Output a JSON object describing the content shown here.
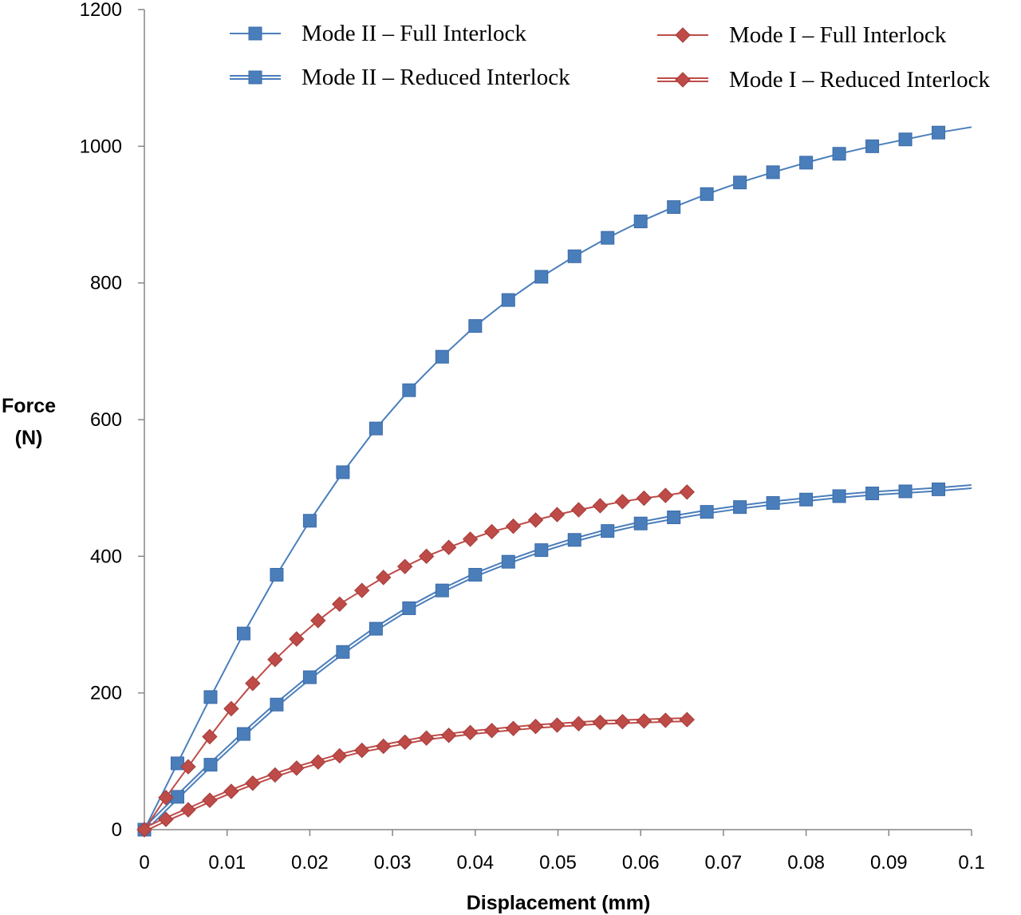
{
  "chart_data": {
    "type": "line",
    "title": "",
    "xlabel": "Displacement (mm)",
    "ylabel_lines": [
      "Force",
      "(N)"
    ],
    "xlim": [
      0,
      0.1
    ],
    "ylim": [
      0,
      1200
    ],
    "x_ticks": [
      {
        "value": 0,
        "label": "0"
      },
      {
        "value": 0.01,
        "label": "0.01"
      },
      {
        "value": 0.02,
        "label": "0.02"
      },
      {
        "value": 0.03,
        "label": "0.03"
      },
      {
        "value": 0.04,
        "label": "0.04"
      },
      {
        "value": 0.05,
        "label": "0.05"
      },
      {
        "value": 0.06,
        "label": "0.06"
      },
      {
        "value": 0.07,
        "label": "0.07"
      },
      {
        "value": 0.08,
        "label": "0.08"
      },
      {
        "value": 0.09,
        "label": "0.09"
      },
      {
        "value": 0.1,
        "label": "0.1"
      }
    ],
    "y_ticks": [
      {
        "value": 0,
        "label": "0"
      },
      {
        "value": 200,
        "label": "200"
      },
      {
        "value": 400,
        "label": "400"
      },
      {
        "value": 600,
        "label": "600"
      },
      {
        "value": 800,
        "label": "800"
      },
      {
        "value": 1000,
        "label": "1000"
      },
      {
        "value": 1200,
        "label": "1200"
      }
    ],
    "grid": false,
    "legend_position": "top",
    "series": [
      {
        "name": "Mode II – Full Interlock",
        "color": "#4a7ebb",
        "marker": "square",
        "line_style": "single",
        "points": [
          [
            0,
            0
          ],
          [
            0.004,
            97
          ],
          [
            0.008,
            194
          ],
          [
            0.012,
            287
          ],
          [
            0.016,
            373
          ],
          [
            0.02,
            452
          ],
          [
            0.024,
            523
          ],
          [
            0.028,
            587
          ],
          [
            0.032,
            643
          ],
          [
            0.036,
            692
          ],
          [
            0.04,
            737
          ],
          [
            0.044,
            775
          ],
          [
            0.048,
            809
          ],
          [
            0.052,
            839
          ],
          [
            0.056,
            866
          ],
          [
            0.06,
            890
          ],
          [
            0.064,
            911
          ],
          [
            0.068,
            930
          ],
          [
            0.072,
            947
          ],
          [
            0.076,
            962
          ],
          [
            0.08,
            976
          ],
          [
            0.084,
            989
          ],
          [
            0.088,
            1000
          ],
          [
            0.092,
            1010
          ],
          [
            0.096,
            1020
          ]
        ],
        "line_end": [
          0.1,
          1028
        ]
      },
      {
        "name": "Mode II – Reduced Interlock",
        "color": "#4a7ebb",
        "marker": "square",
        "line_style": "double",
        "points": [
          [
            0,
            0
          ],
          [
            0.004,
            48
          ],
          [
            0.008,
            95
          ],
          [
            0.012,
            140
          ],
          [
            0.016,
            183
          ],
          [
            0.02,
            223
          ],
          [
            0.024,
            260
          ],
          [
            0.028,
            294
          ],
          [
            0.032,
            324
          ],
          [
            0.036,
            350
          ],
          [
            0.04,
            373
          ],
          [
            0.044,
            392
          ],
          [
            0.048,
            409
          ],
          [
            0.052,
            424
          ],
          [
            0.056,
            437
          ],
          [
            0.06,
            448
          ],
          [
            0.064,
            457
          ],
          [
            0.068,
            465
          ],
          [
            0.072,
            472
          ],
          [
            0.076,
            478
          ],
          [
            0.08,
            483
          ],
          [
            0.084,
            488
          ],
          [
            0.088,
            492
          ],
          [
            0.092,
            495
          ],
          [
            0.096,
            498
          ]
        ],
        "line_end": [
          0.1,
          502
        ]
      },
      {
        "name": "Mode I – Full Interlock",
        "color": "#be4b48",
        "marker": "diamond",
        "line_style": "single",
        "points": [
          [
            0,
            0
          ],
          [
            0.0026,
            47
          ],
          [
            0.0053,
            92
          ],
          [
            0.0079,
            136
          ],
          [
            0.0105,
            177
          ],
          [
            0.0131,
            214
          ],
          [
            0.0158,
            249
          ],
          [
            0.0184,
            279
          ],
          [
            0.021,
            306
          ],
          [
            0.0236,
            330
          ],
          [
            0.0263,
            350
          ],
          [
            0.0289,
            369
          ],
          [
            0.0315,
            385
          ],
          [
            0.0341,
            400
          ],
          [
            0.0368,
            413
          ],
          [
            0.0394,
            425
          ],
          [
            0.042,
            436
          ],
          [
            0.0446,
            444
          ],
          [
            0.0473,
            453
          ],
          [
            0.0499,
            461
          ],
          [
            0.0525,
            468
          ],
          [
            0.0551,
            474
          ],
          [
            0.0578,
            480
          ],
          [
            0.0604,
            485
          ],
          [
            0.063,
            489
          ],
          [
            0.0656,
            494
          ]
        ]
      },
      {
        "name": "Mode I – Reduced Interlock",
        "color": "#be4b48",
        "marker": "diamond",
        "line_style": "double",
        "points": [
          [
            0,
            0
          ],
          [
            0.0026,
            15
          ],
          [
            0.0053,
            29
          ],
          [
            0.0079,
            43
          ],
          [
            0.0105,
            56
          ],
          [
            0.0131,
            68
          ],
          [
            0.0158,
            80
          ],
          [
            0.0184,
            90
          ],
          [
            0.021,
            99
          ],
          [
            0.0236,
            108
          ],
          [
            0.0263,
            116
          ],
          [
            0.0289,
            122
          ],
          [
            0.0315,
            128
          ],
          [
            0.0341,
            134
          ],
          [
            0.0368,
            138
          ],
          [
            0.0394,
            142
          ],
          [
            0.042,
            145
          ],
          [
            0.0446,
            148
          ],
          [
            0.0473,
            151
          ],
          [
            0.0499,
            153
          ],
          [
            0.0525,
            155
          ],
          [
            0.0551,
            157
          ],
          [
            0.0578,
            158
          ],
          [
            0.0604,
            159
          ],
          [
            0.063,
            160
          ],
          [
            0.0656,
            161
          ]
        ]
      }
    ]
  }
}
